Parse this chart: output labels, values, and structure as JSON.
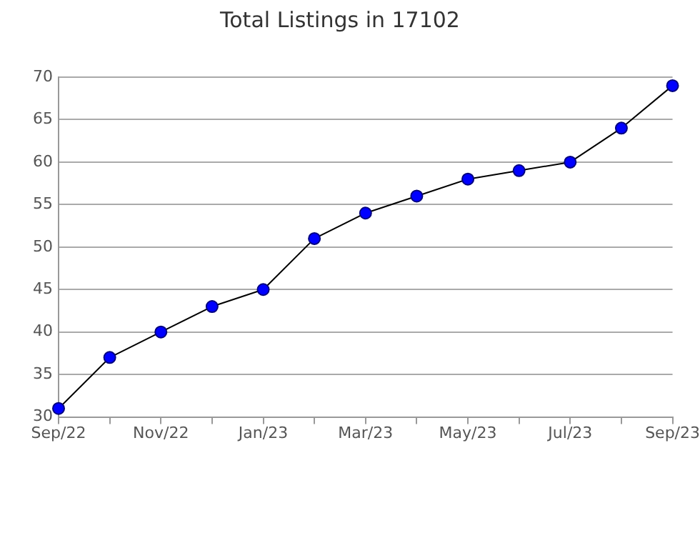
{
  "chart_data": {
    "type": "line",
    "title": "Total Listings in 17102",
    "categories": [
      "Sep/22",
      null,
      "Nov/22",
      null,
      "Jan/23",
      null,
      "Mar/23",
      null,
      "May/23",
      null,
      "Jul/23",
      null,
      "Sep/23"
    ],
    "series": [
      {
        "color": "#0000ff",
        "values": [
          31,
          37,
          40,
          43,
          45,
          51,
          54,
          56,
          58,
          59,
          60,
          64,
          69
        ]
      }
    ],
    "ylim": [
      30,
      70
    ],
    "yticks": [
      30,
      35,
      40,
      45,
      50,
      55,
      60,
      65,
      70
    ],
    "grid": "y",
    "legend": false,
    "marker": "circle",
    "line_style": "solid"
  }
}
